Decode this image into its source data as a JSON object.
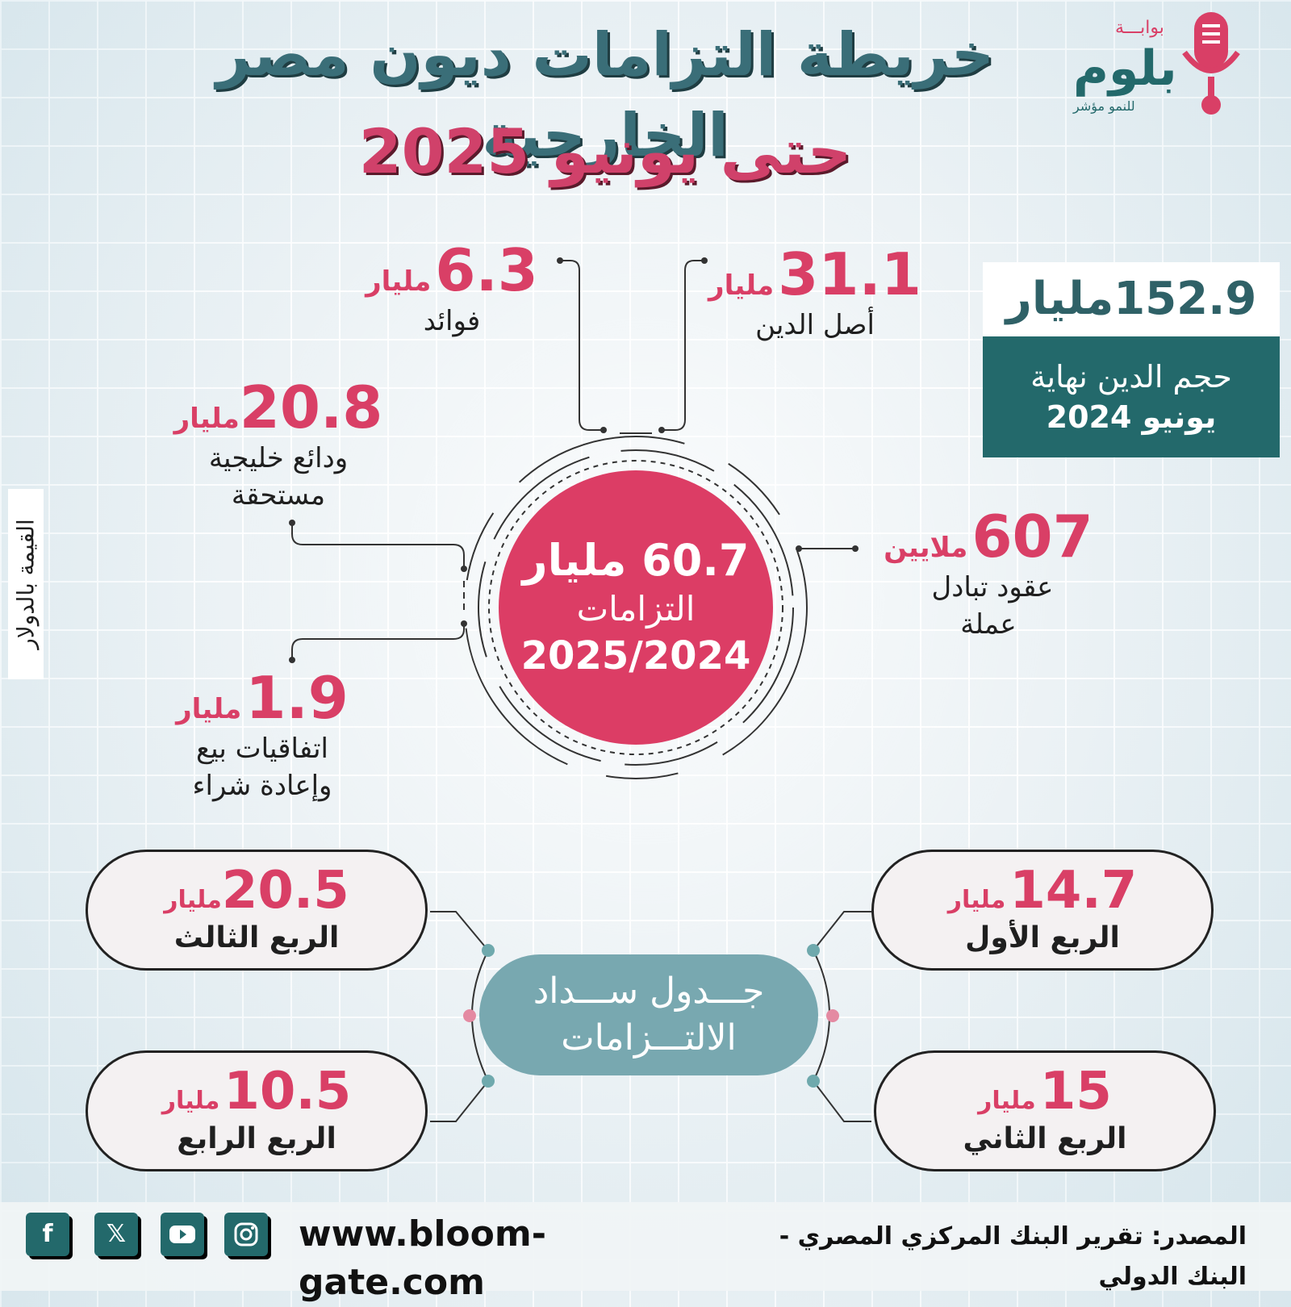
{
  "title": {
    "line1": "خريطة التزامات ديون مصر الخارجية",
    "line2": "حتى يونيو 2025"
  },
  "logo": {
    "top_text": "بوابـــة",
    "name": "بلوم",
    "tagline": "للنمو مؤشر"
  },
  "total": {
    "value": "152.9",
    "unit": "مليار",
    "label_line1": "حجم الدين نهاية",
    "label_line2": "يونيو 2024"
  },
  "center": {
    "value": "60.7",
    "unit": "مليار",
    "label": "التزامات",
    "period": "2025/2024"
  },
  "breakdown": {
    "principal": {
      "value": "31.1",
      "unit": "مليار",
      "label": "أصل الدين"
    },
    "interest": {
      "value": "6.3",
      "unit": "مليار",
      "label": "فوائد"
    },
    "gulf_deposits": {
      "value": "20.8",
      "unit": "مليار",
      "label_line1": "ودائع خليجية",
      "label_line2": "مستحقة"
    },
    "swaps": {
      "value": "607",
      "unit": "ملايين",
      "label_line1": "عقود تبادل",
      "label_line2": "عملة"
    },
    "repo": {
      "value": "1.9",
      "unit": "مليار",
      "label_line1": "اتفاقيات بيع",
      "label_line2": "وإعادة شراء"
    }
  },
  "vertical_note": "القيمة بالدولار",
  "schedule": {
    "title_line1": "جـــدول ســـداد",
    "title_line2": "الالتـــزامات",
    "quarters": [
      {
        "value": "14.7",
        "unit": "مليار",
        "label": "الربع الأول"
      },
      {
        "value": "15",
        "unit": "مليار",
        "label": "الربع الثاني"
      },
      {
        "value": "20.5",
        "unit": "مليار",
        "label": "الربع الثالث"
      },
      {
        "value": "10.5",
        "unit": "مليار",
        "label": "الربع الرابع"
      }
    ]
  },
  "footer": {
    "website": "www.bloom-gate.com",
    "source": "المصدر: تقرير البنك المركزي المصري - البنك الدولي",
    "social_icons": [
      "facebook-icon",
      "x-icon",
      "youtube-icon",
      "instagram-icon"
    ]
  },
  "colors": {
    "accent_pink": "#d93f66",
    "accent_teal": "#23696b",
    "schedule_teal": "#78a8b0"
  }
}
